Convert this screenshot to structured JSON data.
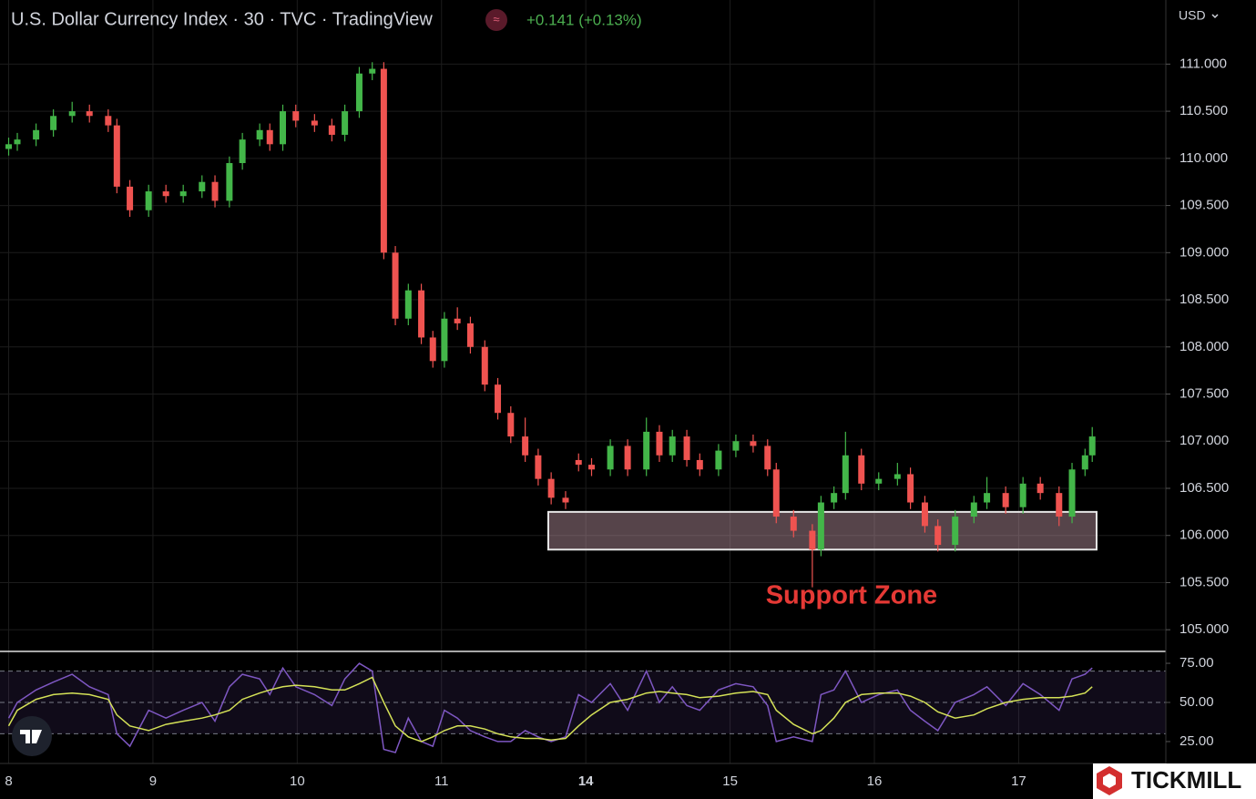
{
  "chart_data": [
    {
      "type": "candlestick",
      "title": "U.S. Dollar Currency Index · 30 · TVC · TradingView",
      "change": "+0.141 (+0.13%)",
      "currency": "USD",
      "up_color": "#43b649",
      "down_color": "#ef5350",
      "grid": true,
      "x": [
        0.0,
        0.06,
        0.19,
        0.31,
        0.44,
        0.56,
        0.69,
        0.75,
        0.84,
        0.97,
        1.09,
        1.21,
        1.34,
        1.43,
        1.53,
        1.62,
        1.74,
        1.81,
        1.9,
        1.99,
        2.12,
        2.24,
        2.33,
        2.43,
        2.52,
        2.6,
        2.68,
        2.77,
        2.86,
        2.94,
        3.02,
        3.11,
        3.2,
        3.3,
        3.39,
        3.48,
        3.58,
        3.67,
        3.76,
        3.86,
        3.95,
        4.04,
        4.17,
        4.29,
        4.42,
        4.51,
        4.6,
        4.7,
        4.79,
        4.92,
        5.04,
        5.16,
        5.26,
        5.32,
        5.44,
        5.57,
        5.63,
        5.72,
        5.8,
        5.91,
        6.03,
        6.16,
        6.25,
        6.35,
        6.44,
        6.56,
        6.69,
        6.78,
        6.91,
        7.03,
        7.15,
        7.28,
        7.37,
        7.46,
        7.51
      ],
      "open": [
        110.1,
        110.15,
        110.2,
        110.3,
        110.45,
        110.5,
        110.45,
        110.35,
        109.7,
        109.45,
        109.65,
        109.6,
        109.65,
        109.75,
        109.55,
        109.95,
        110.2,
        110.3,
        110.15,
        110.5,
        110.4,
        110.35,
        110.25,
        110.5,
        110.9,
        110.95,
        109.0,
        108.3,
        108.6,
        108.1,
        107.85,
        108.3,
        108.25,
        108.0,
        107.6,
        107.3,
        107.05,
        106.85,
        106.6,
        106.4,
        106.8,
        106.75,
        106.7,
        106.95,
        106.7,
        107.1,
        106.85,
        107.05,
        106.8,
        106.7,
        106.9,
        107.0,
        106.95,
        106.7,
        106.2,
        106.05,
        105.85,
        106.35,
        106.45,
        106.85,
        106.55,
        106.6,
        106.65,
        106.35,
        106.1,
        105.9,
        106.2,
        106.35,
        106.45,
        106.3,
        106.55,
        106.45,
        106.2,
        106.7,
        106.85
      ],
      "high": [
        110.22,
        110.27,
        110.37,
        110.52,
        110.6,
        110.57,
        110.52,
        110.42,
        109.77,
        109.72,
        109.72,
        109.72,
        109.82,
        109.82,
        110.02,
        110.27,
        110.37,
        110.37,
        110.57,
        110.57,
        110.47,
        110.42,
        110.57,
        110.97,
        111.02,
        111.02,
        109.07,
        108.67,
        108.67,
        108.17,
        108.37,
        108.42,
        108.32,
        108.07,
        107.67,
        107.37,
        107.25,
        106.92,
        106.67,
        106.47,
        106.87,
        106.82,
        107.02,
        107.02,
        107.25,
        107.17,
        107.12,
        107.12,
        106.87,
        106.97,
        107.07,
        107.07,
        107.02,
        106.77,
        106.27,
        106.12,
        106.42,
        106.52,
        107.1,
        106.92,
        106.67,
        106.77,
        106.72,
        106.42,
        106.17,
        106.27,
        106.42,
        106.62,
        106.52,
        106.62,
        106.62,
        106.52,
        106.77,
        106.92,
        107.15
      ],
      "low": [
        110.03,
        110.08,
        110.13,
        110.23,
        110.38,
        110.38,
        110.28,
        109.63,
        109.38,
        109.38,
        109.53,
        109.53,
        109.58,
        109.48,
        109.48,
        109.88,
        110.13,
        110.08,
        110.08,
        110.33,
        110.28,
        110.18,
        110.18,
        110.43,
        110.83,
        108.93,
        108.23,
        108.23,
        108.03,
        107.78,
        107.78,
        108.18,
        107.93,
        107.53,
        107.23,
        106.98,
        106.78,
        106.53,
        106.33,
        106.28,
        106.68,
        106.63,
        106.63,
        106.63,
        106.63,
        106.78,
        106.78,
        106.73,
        106.63,
        106.63,
        106.83,
        106.88,
        106.63,
        106.13,
        105.98,
        105.45,
        105.78,
        106.28,
        106.38,
        106.48,
        106.48,
        106.53,
        106.28,
        106.03,
        105.83,
        105.83,
        106.13,
        106.28,
        106.23,
        106.23,
        106.38,
        106.1,
        106.13,
        106.63,
        106.78
      ],
      "close": [
        110.15,
        110.2,
        110.3,
        110.45,
        110.5,
        110.45,
        110.35,
        109.7,
        109.45,
        109.65,
        109.6,
        109.65,
        109.75,
        109.55,
        109.95,
        110.2,
        110.3,
        110.15,
        110.5,
        110.4,
        110.35,
        110.25,
        110.5,
        110.9,
        110.95,
        109.0,
        108.3,
        108.6,
        108.1,
        107.85,
        108.3,
        108.25,
        108.0,
        107.6,
        107.3,
        107.05,
        106.85,
        106.6,
        106.4,
        106.35,
        106.75,
        106.7,
        106.95,
        106.7,
        107.1,
        106.85,
        107.05,
        106.8,
        106.7,
        106.9,
        107.0,
        106.95,
        106.7,
        106.2,
        106.05,
        105.85,
        106.35,
        106.45,
        106.85,
        106.55,
        106.6,
        106.65,
        106.35,
        106.1,
        105.9,
        106.2,
        106.35,
        106.45,
        106.3,
        106.55,
        106.45,
        106.2,
        106.7,
        106.85,
        107.05
      ],
      "xlim": [
        -0.06,
        8.02
      ],
      "xticks": [
        {
          "value": 0,
          "label": "8"
        },
        {
          "value": 1,
          "label": "9"
        },
        {
          "value": 2,
          "label": "10"
        },
        {
          "value": 3,
          "label": "11"
        },
        {
          "value": 4,
          "label": "14"
        },
        {
          "value": 5,
          "label": "15"
        },
        {
          "value": 6,
          "label": "16"
        },
        {
          "value": 7,
          "label": "17"
        }
      ],
      "ylim": [
        104.77,
        111.68
      ],
      "yticks": [
        {
          "value": 105,
          "label": "105.000"
        },
        {
          "value": 105.5,
          "label": "105.500"
        },
        {
          "value": 106,
          "label": "106.000"
        },
        {
          "value": 106.5,
          "label": "106.500"
        },
        {
          "value": 107,
          "label": "107.000"
        },
        {
          "value": 107.5,
          "label": "107.500"
        },
        {
          "value": 108,
          "label": "108.000"
        },
        {
          "value": 108.5,
          "label": "108.500"
        },
        {
          "value": 109,
          "label": "109.000"
        },
        {
          "value": 109.5,
          "label": "109.500"
        },
        {
          "value": 110,
          "label": "110.000"
        },
        {
          "value": 110.5,
          "label": "110.500"
        },
        {
          "value": 111,
          "label": "111.000"
        }
      ],
      "zone": {
        "label": "Support Zone",
        "x": [
          3.74,
          7.54
        ],
        "y": [
          105.85,
          106.25
        ],
        "color": "#e53935"
      }
    },
    {
      "type": "line",
      "x": [
        0.0,
        0.06,
        0.19,
        0.31,
        0.44,
        0.56,
        0.69,
        0.75,
        0.84,
        0.97,
        1.09,
        1.21,
        1.34,
        1.43,
        1.53,
        1.62,
        1.74,
        1.81,
        1.9,
        1.99,
        2.12,
        2.24,
        2.33,
        2.43,
        2.52,
        2.6,
        2.68,
        2.77,
        2.86,
        2.94,
        3.02,
        3.11,
        3.2,
        3.3,
        3.39,
        3.48,
        3.58,
        3.67,
        3.76,
        3.86,
        3.95,
        4.04,
        4.17,
        4.29,
        4.42,
        4.51,
        4.6,
        4.7,
        4.79,
        4.92,
        5.04,
        5.16,
        5.26,
        5.32,
        5.44,
        5.57,
        5.63,
        5.72,
        5.8,
        5.91,
        6.03,
        6.16,
        6.25,
        6.35,
        6.44,
        6.56,
        6.69,
        6.78,
        6.91,
        7.03,
        7.15,
        7.28,
        7.37,
        7.46,
        7.51
      ],
      "series": [
        {
          "color": "#7e57c2",
          "values": [
            40,
            50,
            58,
            63,
            68,
            60,
            55,
            30,
            22,
            45,
            40,
            45,
            50,
            38,
            60,
            68,
            65,
            55,
            72,
            60,
            55,
            48,
            65,
            75,
            70,
            20,
            18,
            40,
            25,
            22,
            45,
            40,
            32,
            28,
            25,
            25,
            32,
            28,
            25,
            28,
            55,
            50,
            62,
            45,
            70,
            50,
            60,
            48,
            45,
            58,
            62,
            60,
            48,
            25,
            28,
            25,
            55,
            58,
            70,
            50,
            55,
            58,
            45,
            38,
            32,
            50,
            55,
            60,
            48,
            62,
            55,
            45,
            65,
            68,
            72
          ]
        },
        {
          "color": "#d4e157",
          "values": [
            35,
            45,
            52,
            55,
            56,
            55,
            52,
            42,
            35,
            32,
            36,
            38,
            40,
            42,
            45,
            52,
            56,
            58,
            60,
            61,
            60,
            58,
            58,
            62,
            66,
            50,
            35,
            28,
            25,
            28,
            32,
            35,
            35,
            33,
            30,
            28,
            27,
            27,
            26,
            27,
            35,
            42,
            50,
            52,
            56,
            57,
            56,
            55,
            53,
            54,
            56,
            57,
            55,
            45,
            36,
            30,
            32,
            40,
            50,
            55,
            56,
            56,
            54,
            50,
            44,
            40,
            42,
            46,
            50,
            52,
            53,
            53,
            54,
            56,
            60
          ]
        }
      ],
      "xlim": [
        -0.06,
        8.02
      ],
      "ylim": [
        11,
        82.6
      ],
      "yticks": [
        {
          "value": 25,
          "label": "25.00"
        },
        {
          "value": 50,
          "label": "50.00"
        },
        {
          "value": 75,
          "label": "75.00"
        }
      ],
      "levels": [
        30,
        50,
        70
      ]
    }
  ],
  "watermark": "TICKMILL"
}
